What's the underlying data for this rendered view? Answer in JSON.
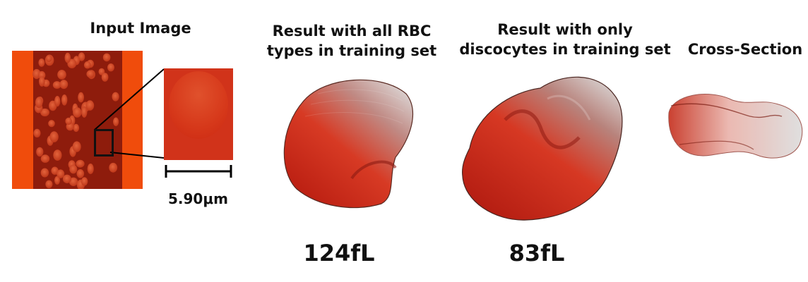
{
  "panels": {
    "input": {
      "title": "Input Image",
      "scale_label": "5.90μm"
    },
    "all_rbc": {
      "title_line1": "Result with all RBC",
      "title_line2": "types in training set",
      "volume": "124fL"
    },
    "discocytes": {
      "title_line1": "Result with only",
      "title_line2": "discocytes in training set",
      "volume": "83fL"
    },
    "cross_section": {
      "title": "Cross-Section"
    }
  },
  "colors": {
    "cell_red": "#d42a1a",
    "cell_grey": "#d7d3d2",
    "micrograph_orange": "#f04c0c",
    "micrograph_dark": "#8e1c0c"
  }
}
